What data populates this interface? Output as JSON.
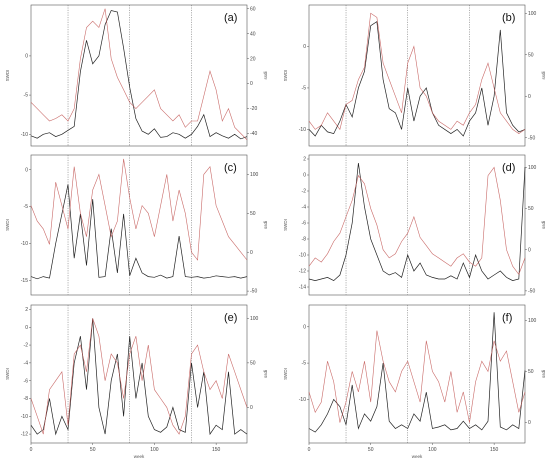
{
  "chart_data": [
    {
      "panel_label": "(a)",
      "type": "line",
      "x": [
        0,
        5,
        10,
        15,
        20,
        25,
        30,
        35,
        40,
        45,
        50,
        55,
        60,
        65,
        70,
        75,
        80,
        85,
        90,
        95,
        100,
        105,
        110,
        115,
        120,
        125,
        130,
        135,
        140,
        145,
        150,
        155,
        160,
        165,
        170,
        175
      ],
      "series": [
        {
          "color": "#222222",
          "axis": "left",
          "values": [
            -10.2,
            -10.5,
            -10.0,
            -9.8,
            -10.3,
            -10.0,
            -9.5,
            -9.0,
            -2.0,
            2.0,
            -1.0,
            0.0,
            4.0,
            5.8,
            5.6,
            1.0,
            -4.0,
            -8.0,
            -9.6,
            -10.0,
            -9.3,
            -10.4,
            -10.3,
            -9.8,
            -10.0,
            -10.5,
            -10.0,
            -9.0,
            -7.5,
            -10.3,
            -9.8,
            -10.2,
            -10.5,
            -10.0,
            -10.6,
            -10.3
          ]
        },
        {
          "color": "#c0504d",
          "axis": "right",
          "values": [
            -15,
            -20,
            -25,
            -30,
            -28,
            -25,
            -30,
            -20,
            20,
            45,
            50,
            45,
            60,
            20,
            5,
            -5,
            -15,
            -20,
            -15,
            -10,
            -5,
            -20,
            -25,
            -30,
            -25,
            -35,
            -30,
            -30,
            -10,
            10,
            -5,
            -30,
            -20,
            -35,
            -40,
            -45
          ]
        }
      ],
      "left_ticks": [
        -10,
        -5,
        0
      ],
      "right_ticks": [
        -40,
        -20,
        0,
        20,
        40,
        60
      ],
      "xlim": [
        0,
        175
      ],
      "ylim_left": [
        -11.5,
        6.5
      ],
      "ylim_right": [
        -50,
        63
      ],
      "xlabel": "",
      "left_axis_label": "SWDI",
      "right_axis_label": "ssdi",
      "vlines": [
        30,
        80,
        130
      ]
    },
    {
      "panel_label": "(b)",
      "type": "line",
      "x": [
        0,
        5,
        10,
        15,
        20,
        25,
        30,
        35,
        40,
        45,
        50,
        55,
        60,
        65,
        70,
        75,
        80,
        85,
        90,
        95,
        100,
        105,
        110,
        115,
        120,
        125,
        130,
        135,
        140,
        145,
        150,
        155,
        160,
        165,
        170,
        175
      ],
      "series": [
        {
          "color": "#222222",
          "axis": "left",
          "values": [
            -10.0,
            -10.8,
            -9.5,
            -10.3,
            -10.5,
            -9.0,
            -7.0,
            -8.5,
            -5.0,
            -3.0,
            2.5,
            3.0,
            -4.0,
            -7.5,
            -8.0,
            -10.0,
            -5.0,
            -9.0,
            -6.0,
            -5.0,
            -8.0,
            -9.5,
            -10.0,
            -10.5,
            -10.0,
            -10.8,
            -9.0,
            -8.0,
            -5.0,
            -9.5,
            -6.0,
            2.0,
            -8.0,
            -9.5,
            -10.3,
            -10.0
          ]
        },
        {
          "color": "#c0504d",
          "axis": "right",
          "values": [
            -30,
            -40,
            -35,
            -20,
            -30,
            -40,
            -10,
            -5,
            20,
            35,
            100,
            95,
            40,
            20,
            0,
            -20,
            40,
            60,
            10,
            0,
            -20,
            -30,
            -35,
            -40,
            -30,
            -35,
            -20,
            -10,
            20,
            40,
            10,
            -20,
            -30,
            -40,
            -45,
            -40
          ]
        }
      ],
      "left_ticks": [
        -10,
        -5,
        0
      ],
      "right_ticks": [
        -50,
        0,
        50,
        100
      ],
      "xlim": [
        0,
        175
      ],
      "ylim_left": [
        -12,
        5
      ],
      "ylim_right": [
        -60,
        110
      ],
      "xlabel": "",
      "left_axis_label": "SWDI",
      "right_axis_label": "ssdi",
      "vlines": [
        30,
        80,
        130
      ]
    },
    {
      "panel_label": "(c)",
      "type": "line",
      "x": [
        0,
        5,
        10,
        15,
        20,
        25,
        30,
        35,
        40,
        45,
        50,
        55,
        60,
        65,
        70,
        75,
        80,
        85,
        90,
        95,
        100,
        105,
        110,
        115,
        120,
        125,
        130,
        135,
        140,
        145,
        150,
        155,
        160,
        165,
        170,
        175
      ],
      "series": [
        {
          "color": "#222222",
          "axis": "left",
          "values": [
            -14.5,
            -14.8,
            -14.5,
            -14.7,
            -10.0,
            -6.0,
            -2.0,
            -12.0,
            -6.0,
            -13.0,
            -4.0,
            -14.6,
            -14.5,
            -8.0,
            -14.0,
            -6.0,
            -14.4,
            -12.0,
            -14.0,
            -14.5,
            -14.6,
            -14.3,
            -14.7,
            -14.5,
            -9.0,
            -14.5,
            -14.6,
            -14.5,
            -14.7,
            -14.6,
            -14.4,
            -14.5,
            -14.6,
            -14.5,
            -14.7,
            -14.5
          ]
        },
        {
          "color": "#c0504d",
          "axis": "right",
          "values": [
            60,
            40,
            30,
            10,
            90,
            60,
            30,
            110,
            50,
            20,
            80,
            100,
            60,
            20,
            40,
            120,
            70,
            30,
            60,
            50,
            20,
            60,
            100,
            40,
            80,
            50,
            0,
            -10,
            100,
            110,
            60,
            40,
            20,
            10,
            0,
            -10
          ]
        }
      ],
      "left_ticks": [
        -15,
        -10,
        -5,
        0
      ],
      "right_ticks": [
        -50,
        0,
        50,
        100
      ],
      "xlim": [
        0,
        175
      ],
      "ylim_left": [
        -17,
        2
      ],
      "ylim_right": [
        -55,
        125
      ],
      "xlabel": "",
      "left_axis_label": "SWDI",
      "right_axis_label": "ssdi",
      "vlines": [
        30,
        80,
        130
      ]
    },
    {
      "panel_label": "(d)",
      "type": "line",
      "x": [
        0,
        5,
        10,
        15,
        20,
        25,
        30,
        35,
        40,
        45,
        50,
        55,
        60,
        65,
        70,
        75,
        80,
        85,
        90,
        95,
        100,
        105,
        110,
        115,
        120,
        125,
        130,
        135,
        140,
        145,
        150,
        155,
        160,
        165,
        170,
        175
      ],
      "series": [
        {
          "color": "#222222",
          "axis": "left",
          "values": [
            -13.0,
            -13.2,
            -13.0,
            -12.8,
            -13.2,
            -12.5,
            -10.0,
            -6.0,
            1.5,
            -4.0,
            -8.0,
            -10.0,
            -12.0,
            -12.5,
            -12.2,
            -12.8,
            -10.0,
            -12.0,
            -11.0,
            -12.5,
            -12.8,
            -13.0,
            -13.0,
            -12.6,
            -13.0,
            -11.0,
            -12.8,
            -10.0,
            -12.0,
            -13.0,
            -12.5,
            -12.0,
            -12.8,
            -13.2,
            -13.0,
            1.0
          ]
        },
        {
          "color": "#c0504d",
          "axis": "right",
          "values": [
            -20,
            -10,
            -15,
            -5,
            10,
            20,
            40,
            60,
            90,
            80,
            50,
            30,
            0,
            -10,
            -5,
            10,
            20,
            40,
            15,
            5,
            -5,
            -10,
            -15,
            -20,
            -10,
            -5,
            -15,
            -20,
            -10,
            90,
            100,
            60,
            0,
            -20,
            -30,
            -10
          ]
        }
      ],
      "left_ticks": [
        -14,
        -12,
        -10,
        -8,
        -6,
        -4,
        -2,
        0,
        2
      ],
      "right_ticks": [
        -50,
        0,
        50,
        100
      ],
      "xlim": [
        0,
        175
      ],
      "ylim_left": [
        -15,
        2.5
      ],
      "ylim_right": [
        -55,
        115
      ],
      "xlabel": "",
      "left_axis_label": "SWDI",
      "right_axis_label": "ssdi",
      "vlines": [
        30,
        80,
        130
      ]
    },
    {
      "panel_label": "(e)",
      "type": "line",
      "x": [
        0,
        5,
        10,
        15,
        20,
        25,
        30,
        35,
        40,
        45,
        50,
        55,
        60,
        65,
        70,
        75,
        80,
        85,
        90,
        95,
        100,
        105,
        110,
        115,
        120,
        125,
        130,
        135,
        140,
        145,
        150,
        155,
        160,
        165,
        170,
        175
      ],
      "series": [
        {
          "color": "#222222",
          "axis": "left",
          "values": [
            -11.0,
            -12.0,
            -11.5,
            -8.0,
            -12.0,
            -10.0,
            -11.5,
            -4.0,
            -1.0,
            -7.0,
            1.0,
            -9.0,
            -12.0,
            -6.0,
            -3.0,
            -10.0,
            -1.0,
            -8.0,
            -4.0,
            -10.0,
            -11.5,
            -11.8,
            -11.2,
            -9.0,
            -11.5,
            -11.8,
            -4.0,
            -9.0,
            -5.0,
            -12.0,
            -11.0,
            -11.5,
            -5.0,
            -12.0,
            -11.5,
            -12.0
          ]
        },
        {
          "color": "#c0504d",
          "axis": "right",
          "values": [
            10,
            -10,
            -30,
            20,
            30,
            40,
            -20,
            60,
            70,
            40,
            100,
            80,
            30,
            60,
            50,
            10,
            60,
            80,
            30,
            70,
            20,
            10,
            0,
            -20,
            -30,
            -10,
            60,
            70,
            40,
            20,
            30,
            10,
            60,
            40,
            20,
            0
          ]
        }
      ],
      "left_ticks": [
        -12,
        -10,
        -8,
        -6,
        -4,
        -2,
        0,
        2
      ],
      "right_ticks": [
        0,
        50,
        100
      ],
      "xlim": [
        0,
        175
      ],
      "ylim_left": [
        -13,
        2.5
      ],
      "ylim_right": [
        -40,
        115
      ],
      "xlabel": "",
      "left_axis_label": "SWDI",
      "right_axis_label": "ssdi",
      "vlines": [
        30,
        80,
        130
      ]
    },
    {
      "panel_label": "(f)",
      "type": "line",
      "x": [
        0,
        5,
        10,
        15,
        20,
        25,
        30,
        35,
        40,
        45,
        50,
        55,
        60,
        65,
        70,
        75,
        80,
        85,
        90,
        95,
        100,
        105,
        110,
        115,
        120,
        125,
        130,
        135,
        140,
        145,
        150,
        155,
        160,
        165,
        170,
        175
      ],
      "series": [
        {
          "color": "#222222",
          "axis": "left",
          "values": [
            -14.0,
            -14.5,
            -13.5,
            -12.0,
            -10.0,
            -11.0,
            -13.5,
            -8.0,
            -14.0,
            -12.0,
            -13.0,
            -11.0,
            -5.0,
            -13.0,
            -14.0,
            -13.5,
            -14.0,
            -12.0,
            -13.0,
            -9.0,
            -14.0,
            -13.8,
            -13.5,
            -14.2,
            -14.0,
            -13.0,
            -14.0,
            -13.5,
            -14.2,
            -13.0,
            2.0,
            -13.8,
            -14.2,
            -13.5,
            -14.0,
            -6.0
          ]
        },
        {
          "color": "#c0504d",
          "axis": "right",
          "values": [
            30,
            10,
            20,
            60,
            40,
            0,
            20,
            50,
            30,
            60,
            20,
            90,
            60,
            40,
            30,
            50,
            60,
            40,
            20,
            80,
            50,
            40,
            20,
            50,
            10,
            30,
            0,
            40,
            60,
            50,
            80,
            60,
            70,
            40,
            10,
            30
          ]
        }
      ],
      "left_ticks": [
        -10,
        -5,
        0
      ],
      "right_ticks": [
        0,
        50,
        100
      ],
      "xlim": [
        0,
        175
      ],
      "ylim_left": [
        -16,
        3
      ],
      "ylim_right": [
        -20,
        115
      ],
      "xlabel": "",
      "left_axis_label": "SWDI",
      "right_axis_label": "ssdi",
      "vlines": [
        30,
        80,
        130
      ]
    }
  ],
  "x_ticks": [
    0,
    50,
    100,
    150
  ],
  "bottom_xlabel": "week"
}
